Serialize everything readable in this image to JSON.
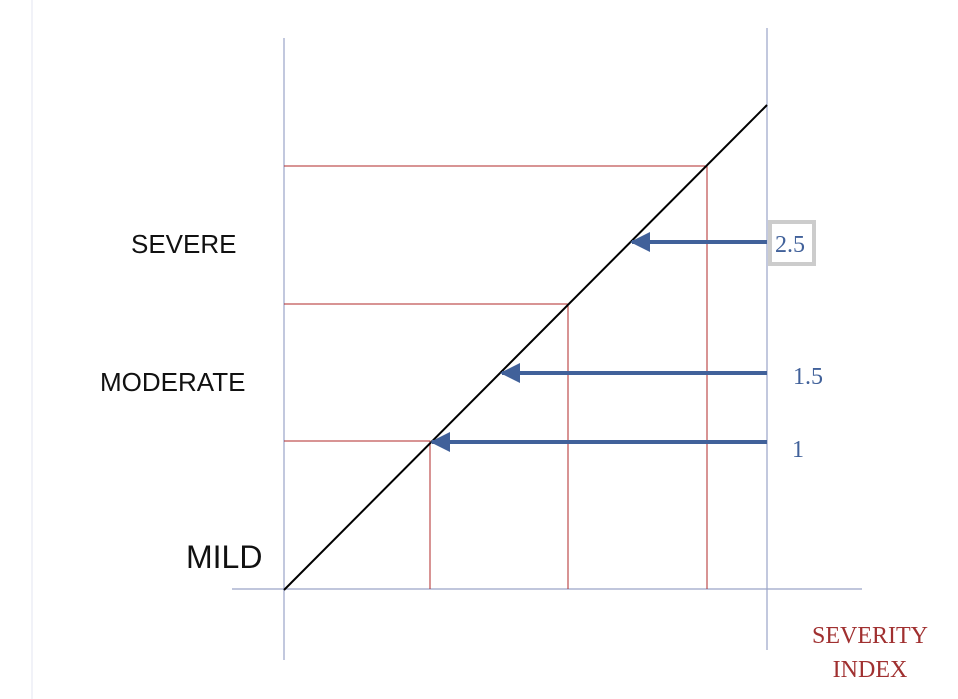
{
  "labels": {
    "mild": "MILD",
    "moderate": "MODERATE",
    "severe": "SEVERE",
    "axis_title_line1": "SEVERITY",
    "axis_title_line2": "INDEX"
  },
  "markers": [
    {
      "label": "1",
      "highlighted": false
    },
    {
      "label": "1.5",
      "highlighted": false
    },
    {
      "label": "2.5",
      "highlighted": true
    }
  ],
  "colors": {
    "diagonal": "#000000",
    "axis": "#9aa4c8",
    "guide": "#b02a2a",
    "arrow": "#41619a",
    "marker_text": "#41619a",
    "axis_title": "#a03030",
    "text": "#111111",
    "highlight_border": "#cccccc"
  }
}
